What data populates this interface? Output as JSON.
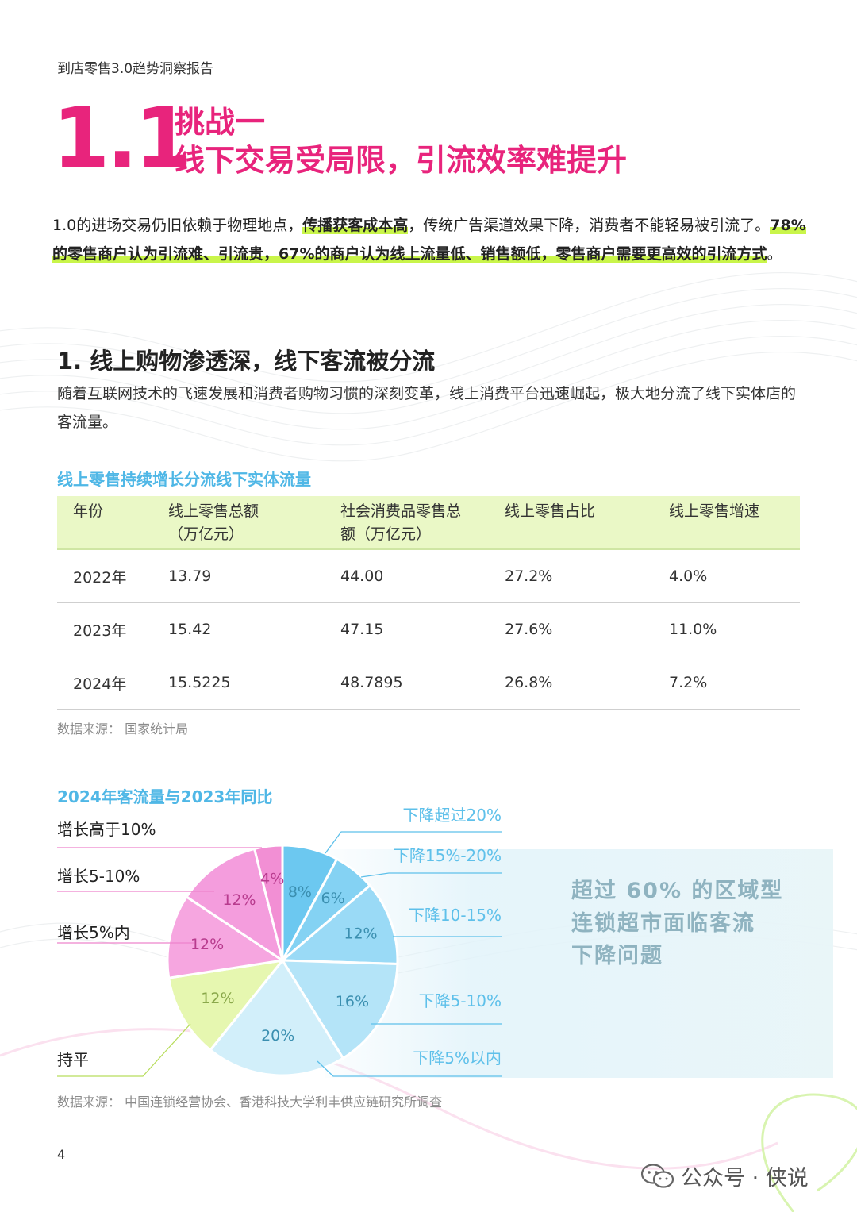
{
  "header": {
    "running_title": "到店零售3.0趋势洞察报告"
  },
  "section": {
    "number": "1.1",
    "title_line1": "挑战一",
    "title_line2": "线下交易受局限，引流效率难提升"
  },
  "intro": {
    "p1": "1.0的进场交易仍旧依赖于物理地点，",
    "h1": "传播获客成本高",
    "p2": "，传统广告渠道效果下降，消费者不能轻易被引流了。",
    "h2": "78%的零售商户认为引流难、引流贵，67%的商户认为线上流量低、销售额低，零售商户需要更高效的引流方式",
    "p3": "。"
  },
  "subsection": {
    "heading": "1. 线上购物渗透深，线下客流被分流",
    "body": "随着互联网技术的飞速发展和消费者购物习惯的深刻变革，线上消费平台迅速崛起，极大地分流了线下实体店的客流量。"
  },
  "table": {
    "title": "线上零售持续增长分流线下实体流量",
    "headers": [
      "年份",
      "线上零售总额（万亿元）",
      "社会消费品零售总额（万亿元）",
      "线上零售占比",
      "线上零售增速"
    ],
    "rows": [
      [
        "2022年",
        "13.79",
        "44.00",
        "27.2%",
        "4.0%"
      ],
      [
        "2023年",
        "15.42",
        "47.15",
        "27.6%",
        "11.0%"
      ],
      [
        "2024年",
        "15.5225",
        "48.7895",
        "26.8%",
        "7.2%"
      ]
    ],
    "source": "数据来源：  国家统计局"
  },
  "chart_data": {
    "type": "pie",
    "title": "2024年客流量与2023年同比",
    "slices": [
      {
        "label": "下降超过20%",
        "value": 8,
        "display": "8%",
        "color": "#6cc8f0"
      },
      {
        "label": "下降15%-20%",
        "value": 6,
        "display": "6%",
        "color": "#84d2f3"
      },
      {
        "label": "下降10-15%",
        "value": 12,
        "display": "12%",
        "color": "#9adaf6"
      },
      {
        "label": "下降5-10%",
        "value": 16,
        "display": "16%",
        "color": "#b4e4f8"
      },
      {
        "label": "下降5%以内",
        "value": 20,
        "display": "20%",
        "color": "#d2effa"
      },
      {
        "label": "持平",
        "value": 12,
        "display": "12%",
        "color": "#e6f7b0"
      },
      {
        "label": "增长5%内",
        "value": 12,
        "display": "12%",
        "color": "#f6a6e0"
      },
      {
        "label": "增长5-10%",
        "value": 12,
        "display": "12%",
        "color": "#f49ddd"
      },
      {
        "label": "增长高于10%",
        "value": 4,
        "display": "4%",
        "color": "#f28fd4"
      }
    ],
    "source": "数据来源：  中国连锁经营协会、香港科技大学利丰供应链研究所调查"
  },
  "callout": {
    "line1": "超过 60% 的区域型",
    "line2": "连锁超市面临客流",
    "line3": "下降问题"
  },
  "footer": {
    "page_number": "4",
    "watermark": "公众号 · 侠说"
  }
}
